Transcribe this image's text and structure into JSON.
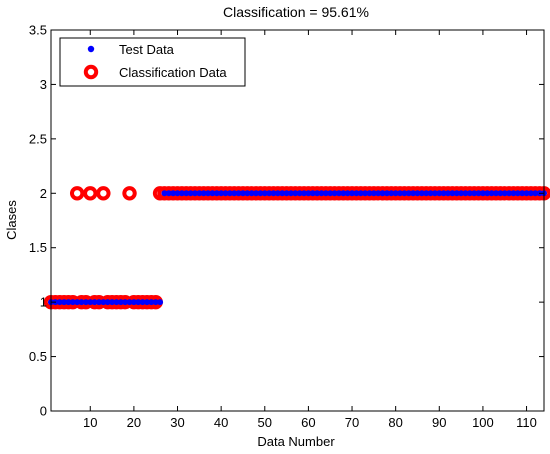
{
  "chart_data": {
    "type": "scatter",
    "title": "Classification = 95.61%",
    "xlabel": "Data Number",
    "ylabel": "Clases",
    "xlim": [
      1,
      114
    ],
    "ylim": [
      0,
      3.5
    ],
    "xticks": [
      10,
      20,
      30,
      40,
      50,
      60,
      70,
      80,
      90,
      100,
      110
    ],
    "yticks": [
      0,
      0.5,
      1,
      1.5,
      2,
      2.5,
      3,
      3.5
    ],
    "xtick_labels": [
      "10",
      "20",
      "30",
      "40",
      "50",
      "60",
      "70",
      "80",
      "90",
      "100",
      "110"
    ],
    "ytick_labels": [
      "0",
      "0.5",
      "1",
      "1.5",
      "2",
      "2.5",
      "3",
      "3.5"
    ],
    "grid": false,
    "legend_position": "top-left",
    "series": [
      {
        "name": "Test Data",
        "marker": "filled-dot",
        "color": "#0000ff",
        "x": [
          1,
          2,
          3,
          4,
          5,
          6,
          7,
          8,
          9,
          10,
          11,
          12,
          13,
          14,
          15,
          16,
          17,
          18,
          19,
          20,
          21,
          22,
          23,
          24,
          25,
          26,
          27,
          28,
          29,
          30,
          31,
          32,
          33,
          34,
          35,
          36,
          37,
          38,
          39,
          40,
          41,
          42,
          43,
          44,
          45,
          46,
          47,
          48,
          49,
          50,
          51,
          52,
          53,
          54,
          55,
          56,
          57,
          58,
          59,
          60,
          61,
          62,
          63,
          64,
          65,
          66,
          67,
          68,
          69,
          70,
          71,
          72,
          73,
          74,
          75,
          76,
          77,
          78,
          79,
          80,
          81,
          82,
          83,
          84,
          85,
          86,
          87,
          88,
          89,
          90,
          91,
          92,
          93,
          94,
          95,
          96,
          97,
          98,
          99,
          100,
          101,
          102,
          103,
          104,
          105,
          106,
          107,
          108,
          109,
          110,
          111,
          112,
          113,
          114
        ],
        "y": [
          1,
          1,
          1,
          1,
          1,
          1,
          1,
          1,
          1,
          1,
          1,
          1,
          1,
          1,
          1,
          1,
          1,
          1,
          1,
          1,
          1,
          1,
          1,
          1,
          1,
          1,
          2,
          2,
          2,
          2,
          2,
          2,
          2,
          2,
          2,
          2,
          2,
          2,
          2,
          2,
          2,
          2,
          2,
          2,
          2,
          2,
          2,
          2,
          2,
          2,
          2,
          2,
          2,
          2,
          2,
          2,
          2,
          2,
          2,
          2,
          2,
          2,
          2,
          2,
          2,
          2,
          2,
          2,
          2,
          2,
          2,
          2,
          2,
          2,
          2,
          2,
          2,
          2,
          2,
          2,
          2,
          2,
          2,
          2,
          2,
          2,
          2,
          2,
          2,
          2,
          2,
          2,
          2,
          2,
          2,
          2,
          2,
          2,
          2,
          2,
          2,
          2,
          2,
          2,
          2,
          2,
          2,
          2,
          2,
          2,
          2,
          2,
          2,
          2
        ]
      },
      {
        "name": "Classification Data",
        "marker": "ring",
        "color": "#ff0000",
        "x": [
          1,
          2,
          3,
          4,
          5,
          6,
          7,
          8,
          9,
          10,
          11,
          12,
          13,
          14,
          15,
          16,
          17,
          18,
          19,
          20,
          21,
          22,
          23,
          24,
          25,
          26,
          27,
          28,
          29,
          30,
          31,
          32,
          33,
          34,
          35,
          36,
          37,
          38,
          39,
          40,
          41,
          42,
          43,
          44,
          45,
          46,
          47,
          48,
          49,
          50,
          51,
          52,
          53,
          54,
          55,
          56,
          57,
          58,
          59,
          60,
          61,
          62,
          63,
          64,
          65,
          66,
          67,
          68,
          69,
          70,
          71,
          72,
          73,
          74,
          75,
          76,
          77,
          78,
          79,
          80,
          81,
          82,
          83,
          84,
          85,
          86,
          87,
          88,
          89,
          90,
          91,
          92,
          93,
          94,
          95,
          96,
          97,
          98,
          99,
          100,
          101,
          102,
          103,
          104,
          105,
          106,
          107,
          108,
          109,
          110,
          111,
          112,
          113,
          114
        ],
        "y": [
          1,
          1,
          1,
          1,
          1,
          1,
          2,
          1,
          1,
          2,
          1,
          1,
          2,
          1,
          1,
          1,
          1,
          1,
          2,
          1,
          1,
          1,
          1,
          1,
          1,
          2,
          2,
          2,
          2,
          2,
          2,
          2,
          2,
          2,
          2,
          2,
          2,
          2,
          2,
          2,
          2,
          2,
          2,
          2,
          2,
          2,
          2,
          2,
          2,
          2,
          2,
          2,
          2,
          2,
          2,
          2,
          2,
          2,
          2,
          2,
          2,
          2,
          2,
          2,
          2,
          2,
          2,
          2,
          2,
          2,
          2,
          2,
          2,
          2,
          2,
          2,
          2,
          2,
          2,
          2,
          2,
          2,
          2,
          2,
          2,
          2,
          2,
          2,
          2,
          2,
          2,
          2,
          2,
          2,
          2,
          2,
          2,
          2,
          2,
          2,
          2,
          2,
          2,
          2,
          2,
          2,
          2,
          2,
          2,
          2,
          2,
          2,
          2,
          2
        ]
      }
    ]
  }
}
